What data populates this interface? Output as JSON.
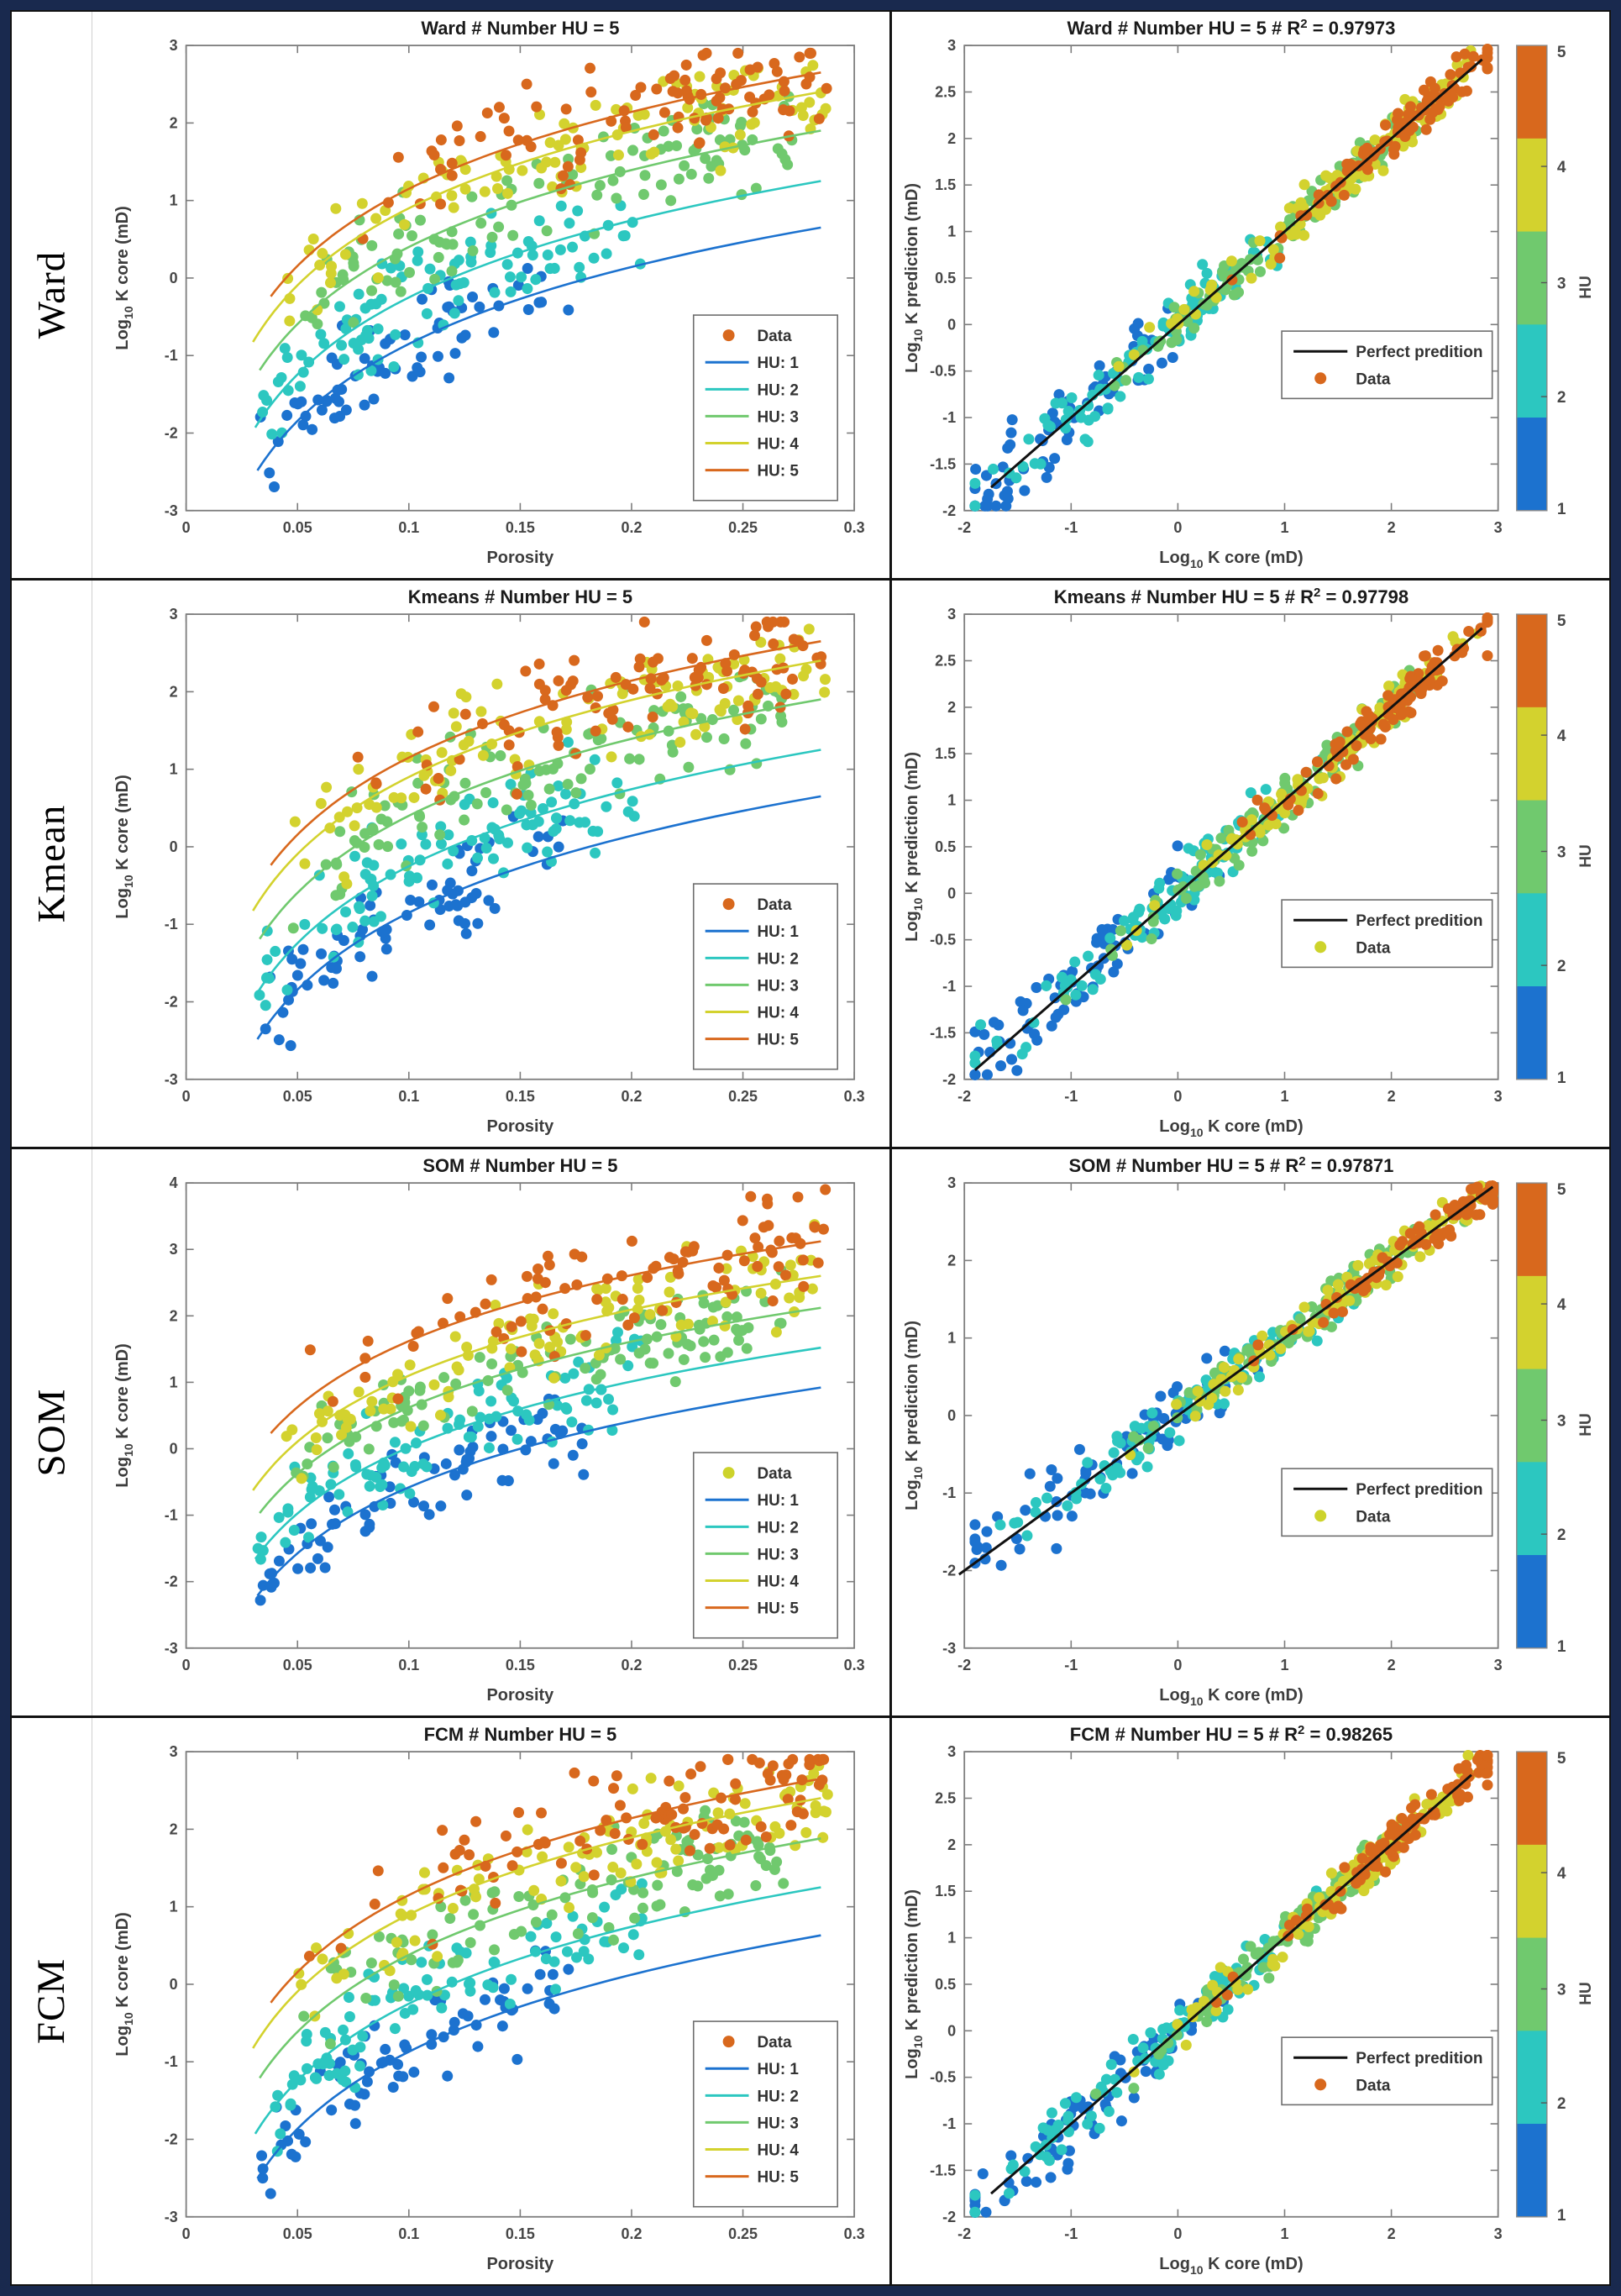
{
  "frame": {
    "border_color": "#19294e",
    "divider_color": "#121212"
  },
  "hu_colors": {
    "1": "#1c72cf",
    "2": "#2cc7c0",
    "3": "#70c96e",
    "4": "#d3d22e",
    "5": "#d8681d"
  },
  "rows": [
    {
      "label": "Ward"
    },
    {
      "label": "Kmean"
    },
    {
      "label": "SOM"
    },
    {
      "label": "FCM"
    }
  ],
  "chart_data": [
    {
      "panel": "left",
      "method": "Ward",
      "type": "scatter",
      "title": "Ward # Number HU = 5",
      "xlabel": "Porosity",
      "ylabel": {
        "pre": "Log",
        "sub": "10",
        "post": " K core (mD)"
      },
      "xlim": [
        0,
        0.3
      ],
      "xticks": [
        0,
        0.05,
        0.1,
        0.15,
        0.2,
        0.25,
        0.3
      ],
      "ylim": [
        -3,
        3
      ],
      "yticks": [
        -3,
        -2,
        -1,
        0,
        1,
        2,
        3
      ],
      "slope": 3.3,
      "seed": 101,
      "legend": {
        "data_label": "Data",
        "data_color": "#d8681d"
      },
      "series": [
        {
          "hu": 1,
          "label": "HU: 1",
          "color": "#1c72cf",
          "intercept": 2.45,
          "n": 70,
          "xrange": [
            0.033,
            0.175
          ],
          "bias": 1.1,
          "sd": 0.3,
          "curve_x": [
            0.032,
            0.285
          ]
        },
        {
          "hu": 2,
          "label": "HU: 2",
          "color": "#2cc7c0",
          "intercept": 3.05,
          "n": 95,
          "xrange": [
            0.032,
            0.205
          ],
          "bias": 1.0,
          "sd": 0.32,
          "curve_x": [
            0.031,
            0.285
          ]
        },
        {
          "hu": 3,
          "label": "HU: 3",
          "color": "#70c96e",
          "intercept": 3.7,
          "n": 110,
          "xrange": [
            0.048,
            0.272
          ],
          "bias": 0.9,
          "sd": 0.33,
          "curve_x": [
            0.033,
            0.285
          ]
        },
        {
          "hu": 4,
          "label": "HU: 4",
          "color": "#d3d22e",
          "intercept": 4.2,
          "n": 105,
          "xrange": [
            0.04,
            0.288
          ],
          "bias": 0.8,
          "sd": 0.33,
          "curve_x": [
            0.03,
            0.285
          ]
        },
        {
          "hu": 5,
          "label": "HU: 5",
          "color": "#d8681d",
          "intercept": 4.45,
          "n": 95,
          "xrange": [
            0.05,
            0.288
          ],
          "bias": 0.55,
          "sd": 0.38,
          "curve_x": [
            0.038,
            0.285
          ]
        }
      ]
    },
    {
      "panel": "right",
      "method": "Ward",
      "type": "scatter",
      "title": {
        "pre": "Ward # Number HU = 5 #  R",
        "sup": "2",
        "post": " = 0.97973"
      },
      "r2": 0.97973,
      "xlabel": {
        "pre": "Log",
        "sub": "10",
        "post": " K core (mD)"
      },
      "ylabel": {
        "pre": "Log",
        "sub": "10",
        "post": " K prediction (mD)"
      },
      "xlim": [
        -2,
        3
      ],
      "xticks": [
        -2,
        -1,
        0,
        1,
        2,
        3
      ],
      "ylim": [
        -2,
        3
      ],
      "yticks": [
        -2,
        -1.5,
        -1,
        -0.5,
        0,
        0.5,
        1,
        1.5,
        2,
        2.5,
        3
      ],
      "line": {
        "label": "Perfect predition",
        "x0": -1.75,
        "x1": 2.85
      },
      "legend": {
        "line_label": "Perfect predition",
        "data_label": "Data",
        "data_color": "#d8681d"
      },
      "colorbar": {
        "label": "HU",
        "ticks": [
          5,
          4,
          3,
          2,
          1
        ],
        "colors_top_to_bottom": [
          "#d8681d",
          "#d3d22e",
          "#70c96e",
          "#2cc7c0",
          "#1c72cf"
        ]
      },
      "pred_sd": [
        0.22,
        0.16,
        0.12,
        0.12,
        0.12
      ],
      "seed": 151
    },
    {
      "panel": "left",
      "method": "Kmean",
      "type": "scatter",
      "title": "Kmeans # Number HU = 5",
      "xlabel": "Porosity",
      "ylabel": {
        "pre": "Log",
        "sub": "10",
        "post": " K core (mD)"
      },
      "xlim": [
        0,
        0.3
      ],
      "xticks": [
        0,
        0.05,
        0.1,
        0.15,
        0.2,
        0.25,
        0.3
      ],
      "ylim": [
        -3,
        3
      ],
      "yticks": [
        -3,
        -2,
        -1,
        0,
        1,
        2,
        3
      ],
      "slope": 3.3,
      "seed": 202,
      "legend": {
        "data_label": "Data",
        "data_color": "#d8681d"
      },
      "series": [
        {
          "hu": 1,
          "label": "HU: 1",
          "color": "#1c72cf",
          "intercept": 2.45,
          "n": 72,
          "xrange": [
            0.033,
            0.17
          ],
          "bias": 1.1,
          "sd": 0.3,
          "curve_x": [
            0.032,
            0.285
          ]
        },
        {
          "hu": 2,
          "label": "HU: 2",
          "color": "#2cc7c0",
          "intercept": 3.05,
          "n": 95,
          "xrange": [
            0.032,
            0.205
          ],
          "bias": 1.0,
          "sd": 0.32,
          "curve_x": [
            0.031,
            0.285
          ]
        },
        {
          "hu": 3,
          "label": "HU: 3",
          "color": "#70c96e",
          "intercept": 3.7,
          "n": 108,
          "xrange": [
            0.048,
            0.268
          ],
          "bias": 0.9,
          "sd": 0.33,
          "curve_x": [
            0.033,
            0.285
          ]
        },
        {
          "hu": 4,
          "label": "HU: 4",
          "color": "#d3d22e",
          "intercept": 4.2,
          "n": 105,
          "xrange": [
            0.04,
            0.288
          ],
          "bias": 0.8,
          "sd": 0.33,
          "curve_x": [
            0.03,
            0.285
          ]
        },
        {
          "hu": 5,
          "label": "HU: 5",
          "color": "#d8681d",
          "intercept": 4.45,
          "n": 96,
          "xrange": [
            0.05,
            0.288
          ],
          "bias": 0.55,
          "sd": 0.38,
          "curve_x": [
            0.038,
            0.285
          ]
        }
      ]
    },
    {
      "panel": "right",
      "method": "Kmean",
      "type": "scatter",
      "title": {
        "pre": "Kmeans # Number HU = 5 #  R",
        "sup": "2",
        "post": " = 0.97798"
      },
      "r2": 0.97798,
      "xlabel": {
        "pre": "Log",
        "sub": "10",
        "post": " K core (mD)"
      },
      "ylabel": {
        "pre": "Log",
        "sub": "10",
        "post": " K prediction (mD)"
      },
      "xlim": [
        -2,
        3
      ],
      "xticks": [
        -2,
        -1,
        0,
        1,
        2,
        3
      ],
      "ylim": [
        -2,
        3
      ],
      "yticks": [
        -2,
        -1.5,
        -1,
        -0.5,
        0,
        0.5,
        1,
        1.5,
        2,
        2.5,
        3
      ],
      "line": {
        "label": "Perfect predition",
        "x0": -1.9,
        "x1": 2.85
      },
      "legend": {
        "line_label": "Perfect predition",
        "data_label": "Data",
        "data_color": "#cdd32b"
      },
      "colorbar": {
        "label": "HU",
        "ticks": [
          5,
          4,
          3,
          2,
          1
        ],
        "colors_top_to_bottom": [
          "#d8681d",
          "#d3d22e",
          "#70c96e",
          "#2cc7c0",
          "#1c72cf"
        ]
      },
      "pred_sd": [
        0.24,
        0.16,
        0.12,
        0.12,
        0.12
      ],
      "seed": 252
    },
    {
      "panel": "left",
      "method": "SOM",
      "type": "scatter",
      "title": "SOM # Number HU = 5",
      "xlabel": "Porosity",
      "ylabel": {
        "pre": "Log",
        "sub": "10",
        "post": " K core (mD)"
      },
      "xlim": [
        0,
        0.3
      ],
      "xticks": [
        0,
        0.05,
        0.1,
        0.15,
        0.2,
        0.25,
        0.3
      ],
      "ylim": [
        -3,
        4
      ],
      "yticks": [
        -3,
        -2,
        -1,
        0,
        1,
        2,
        3,
        4
      ],
      "slope": 3.3,
      "seed": 303,
      "legend": {
        "data_label": "Data",
        "data_color": "#cdd32b"
      },
      "series": [
        {
          "hu": 1,
          "label": "HU: 1",
          "color": "#1c72cf",
          "intercept": 2.72,
          "n": 74,
          "xrange": [
            0.033,
            0.18
          ],
          "bias": 1.1,
          "sd": 0.3,
          "curve_x": [
            0.032,
            0.285
          ]
        },
        {
          "hu": 2,
          "label": "HU: 2",
          "color": "#2cc7c0",
          "intercept": 3.32,
          "n": 95,
          "xrange": [
            0.032,
            0.205
          ],
          "bias": 1.0,
          "sd": 0.32,
          "curve_x": [
            0.031,
            0.285
          ]
        },
        {
          "hu": 3,
          "label": "HU: 3",
          "color": "#70c96e",
          "intercept": 3.92,
          "n": 108,
          "xrange": [
            0.048,
            0.268
          ],
          "bias": 0.9,
          "sd": 0.33,
          "curve_x": [
            0.033,
            0.285
          ]
        },
        {
          "hu": 4,
          "label": "HU: 4",
          "color": "#d3d22e",
          "intercept": 4.4,
          "n": 103,
          "xrange": [
            0.04,
            0.285
          ],
          "bias": 0.8,
          "sd": 0.33,
          "curve_x": [
            0.03,
            0.285
          ]
        },
        {
          "hu": 5,
          "label": "HU: 5",
          "color": "#d8681d",
          "intercept": 4.92,
          "n": 92,
          "xrange": [
            0.05,
            0.288
          ],
          "bias": 0.55,
          "sd": 0.38,
          "curve_x": [
            0.038,
            0.285
          ]
        }
      ]
    },
    {
      "panel": "right",
      "method": "SOM",
      "type": "scatter",
      "title": {
        "pre": "SOM # Number HU = 5 #  R",
        "sup": "2",
        "post": " = 0.97871"
      },
      "r2": 0.97871,
      "xlabel": {
        "pre": "Log",
        "sub": "10",
        "post": " K core (mD)"
      },
      "ylabel": {
        "pre": "Log",
        "sub": "10",
        "post": " K prediction (mD)"
      },
      "xlim": [
        -2,
        3
      ],
      "xticks": [
        -2,
        -1,
        0,
        1,
        2,
        3
      ],
      "ylim": [
        -3,
        3
      ],
      "yticks": [
        -3,
        -2,
        -1,
        0,
        1,
        2,
        3
      ],
      "line": {
        "label": "Perfect predition",
        "x0": -2.05,
        "x1": 2.95
      },
      "legend": {
        "line_label": "Perfect predition",
        "data_label": "Data",
        "data_color": "#cdd32b"
      },
      "colorbar": {
        "label": "HU",
        "ticks": [
          5,
          4,
          3,
          2,
          1
        ],
        "colors_top_to_bottom": [
          "#d8681d",
          "#d3d22e",
          "#70c96e",
          "#2cc7c0",
          "#1c72cf"
        ]
      },
      "pred_sd": [
        0.24,
        0.17,
        0.13,
        0.12,
        0.12
      ],
      "seed": 353
    },
    {
      "panel": "left",
      "method": "FCM",
      "type": "scatter",
      "title": "FCM # Number HU = 5",
      "xlabel": "Porosity",
      "ylabel": {
        "pre": "Log",
        "sub": "10",
        "post": " K core (mD)"
      },
      "xlim": [
        0,
        0.3
      ],
      "xticks": [
        0,
        0.05,
        0.1,
        0.15,
        0.2,
        0.25,
        0.3
      ],
      "ylim": [
        -3,
        3
      ],
      "yticks": [
        -3,
        -2,
        -1,
        0,
        1,
        2,
        3
      ],
      "slope": 3.3,
      "seed": 404,
      "legend": {
        "data_label": "Data",
        "data_color": "#d8681d"
      },
      "series": [
        {
          "hu": 1,
          "label": "HU: 1",
          "color": "#1c72cf",
          "intercept": 2.43,
          "n": 72,
          "xrange": [
            0.033,
            0.175
          ],
          "bias": 1.1,
          "sd": 0.3,
          "curve_x": [
            0.032,
            0.285
          ]
        },
        {
          "hu": 2,
          "label": "HU: 2",
          "color": "#2cc7c0",
          "intercept": 3.05,
          "n": 95,
          "xrange": [
            0.032,
            0.205
          ],
          "bias": 1.0,
          "sd": 0.32,
          "curve_x": [
            0.031,
            0.285
          ]
        },
        {
          "hu": 3,
          "label": "HU: 3",
          "color": "#70c96e",
          "intercept": 3.68,
          "n": 108,
          "xrange": [
            0.048,
            0.27
          ],
          "bias": 0.9,
          "sd": 0.33,
          "curve_x": [
            0.033,
            0.285
          ]
        },
        {
          "hu": 4,
          "label": "HU: 4",
          "color": "#d3d22e",
          "intercept": 4.2,
          "n": 105,
          "xrange": [
            0.04,
            0.288
          ],
          "bias": 0.8,
          "sd": 0.33,
          "curve_x": [
            0.03,
            0.285
          ]
        },
        {
          "hu": 5,
          "label": "HU: 5",
          "color": "#d8681d",
          "intercept": 4.45,
          "n": 95,
          "xrange": [
            0.05,
            0.288
          ],
          "bias": 0.55,
          "sd": 0.38,
          "curve_x": [
            0.038,
            0.285
          ]
        }
      ]
    },
    {
      "panel": "right",
      "method": "FCM",
      "type": "scatter",
      "title": {
        "pre": "FCM # Number HU = 5 #  R",
        "sup": "2",
        "post": " = 0.98265"
      },
      "r2": 0.98265,
      "xlabel": {
        "pre": "Log",
        "sub": "10",
        "post": " K core (mD)"
      },
      "ylabel": {
        "pre": "Log",
        "sub": "10",
        "post": " K prediction (mD)"
      },
      "xlim": [
        -2,
        3
      ],
      "xticks": [
        -2,
        -1,
        0,
        1,
        2,
        3
      ],
      "ylim": [
        -2,
        3
      ],
      "yticks": [
        -2,
        -1.5,
        -1,
        -0.5,
        0,
        0.5,
        1,
        1.5,
        2,
        2.5,
        3
      ],
      "line": {
        "label": "Perfect predition",
        "x0": -1.75,
        "x1": 2.75
      },
      "legend": {
        "line_label": "Perfect predition",
        "data_label": "Data",
        "data_color": "#d8681d"
      },
      "colorbar": {
        "label": "HU",
        "ticks": [
          5,
          4,
          3,
          2,
          1
        ],
        "colors_top_to_bottom": [
          "#d8681d",
          "#d3d22e",
          "#70c96e",
          "#2cc7c0",
          "#1c72cf"
        ]
      },
      "pred_sd": [
        0.2,
        0.15,
        0.11,
        0.11,
        0.11
      ],
      "seed": 454
    }
  ]
}
